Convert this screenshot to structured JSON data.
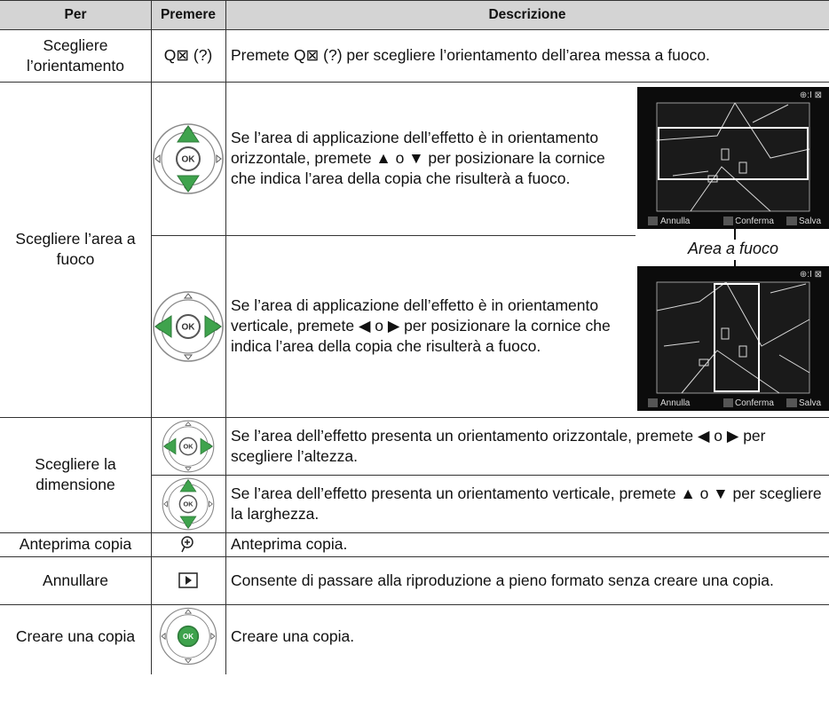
{
  "header": {
    "per": "Per",
    "premere": "Premere",
    "descrizione": "Descrizione"
  },
  "ok_label": "OK",
  "rows": [
    {
      "per": "Scegliere l’orientamento",
      "premere": "Q⊠ (?)",
      "descrizione": "Premete Q⊠ (?) per scegliere l’orientamento dell’area messa a fuoco."
    },
    {
      "per": "Scegliere l’area a fuoco",
      "items": [
        {
          "descrizione": "Se l’area di applicazione dell’effetto è in orientamento orizzontale, premete ▲ o ▼  per posizionare la cornice che indica l’area della copia che risulterà a fuoco."
        },
        {
          "descrizione": "Se l’area di applicazione dell’effetto è in orientamento verticale, premete ◀ o ▶  per posizionare la cornice che indica l’area della copia che risulterà a fuoco."
        }
      ],
      "callout": "Area a fuoco",
      "screen_labels": [
        "Annulla",
        "Conferma",
        "Salva"
      ]
    },
    {
      "per": "Scegliere la dimensione",
      "items": [
        {
          "descrizione": "Se l’area dell’effetto presenta un orientamento orizzontale, premete ◀ o ▶ per scegliere l’altezza."
        },
        {
          "descrizione": "Se l’area dell’effetto presenta un orientamento verticale, premete ▲ o ▼ per scegliere la larghezza."
        }
      ]
    },
    {
      "per": "Anteprima copia",
      "descrizione": "Anteprima copia."
    },
    {
      "per": "Annullare",
      "descrizione": "Consente di passare alla riproduzione a pieno formato senza creare una copia."
    },
    {
      "per": "Creare una copia",
      "descrizione": "Creare una copia."
    }
  ]
}
